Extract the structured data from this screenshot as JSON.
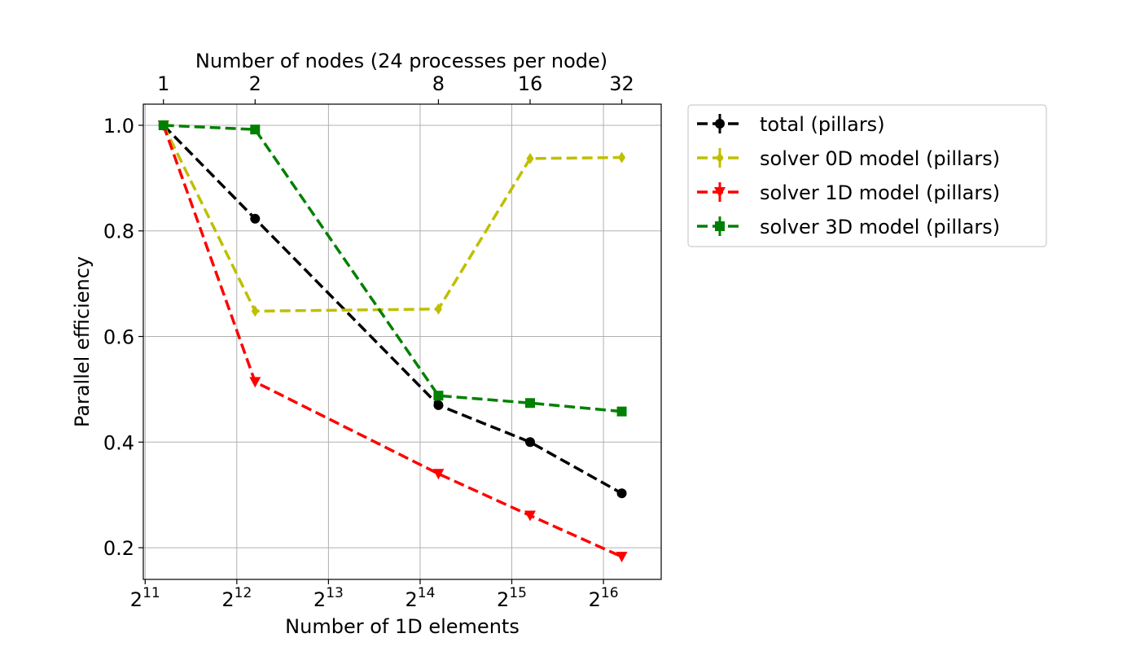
{
  "chart_data": {
    "type": "line",
    "xlabel": "Number of 1D elements",
    "ylabel": "Parallel efficiency",
    "top_xlabel": "Number of nodes (24 processes per node)",
    "x_axis": {
      "scale": "log2",
      "lim_log2": [
        10.98,
        16.63
      ],
      "ticks": [
        {
          "base": "2",
          "exp": "11",
          "value": 2048
        },
        {
          "base": "2",
          "exp": "12",
          "value": 4096
        },
        {
          "base": "2",
          "exp": "13",
          "value": 8192
        },
        {
          "base": "2",
          "exp": "14",
          "value": 16384
        },
        {
          "base": "2",
          "exp": "15",
          "value": 32768
        },
        {
          "base": "2",
          "exp": "16",
          "value": 65536
        }
      ]
    },
    "top_axis": {
      "ticks": [
        {
          "label": "1",
          "x": 2352
        },
        {
          "label": "2",
          "x": 4704
        },
        {
          "label": "8",
          "x": 18816
        },
        {
          "label": "16",
          "x": 37632
        },
        {
          "label": "32",
          "x": 75264
        }
      ]
    },
    "y_axis": {
      "lim": [
        0.14,
        1.04
      ],
      "ticks": [
        "0.2",
        "0.4",
        "0.6",
        "0.8",
        "1.0"
      ]
    },
    "grid": true,
    "legend_position": "outside upper right",
    "x": [
      2352,
      4704,
      18816,
      37632,
      75264
    ],
    "series": [
      {
        "name": "total (pillars)",
        "color": "#000000",
        "marker": "circle",
        "values": [
          1.0,
          0.823,
          0.47,
          0.4,
          0.303
        ]
      },
      {
        "name": "solver 0D model (pillars)",
        "color": "#bfbf00",
        "marker": "thin-diamond",
        "values": [
          1.0,
          0.648,
          0.652,
          0.937,
          0.939
        ]
      },
      {
        "name": "solver 1D model (pillars)",
        "color": "#ff0000",
        "marker": "triangle-down",
        "values": [
          1.0,
          0.514,
          0.34,
          0.261,
          0.183
        ]
      },
      {
        "name": "solver 3D model (pillars)",
        "color": "#008000",
        "marker": "square",
        "values": [
          1.0,
          0.992,
          0.488,
          0.474,
          0.458
        ]
      }
    ]
  }
}
